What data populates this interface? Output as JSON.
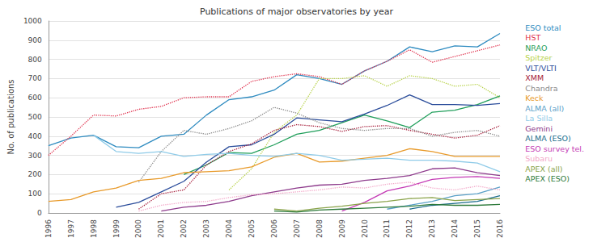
{
  "chart_data": {
    "type": "line",
    "title": "Publications of major observatories by year",
    "y_label": "No. of publications",
    "categories": [
      "1996",
      "1997",
      "1998",
      "1999",
      "2000",
      "2001",
      "2002",
      "2003",
      "2004",
      "2005",
      "2006",
      "2007",
      "2008",
      "2009",
      "2010",
      "2011",
      "2012",
      "2013",
      "2014",
      "2015",
      "2016"
    ],
    "ylim": [
      0,
      1000
    ],
    "yticks": [
      0,
      100,
      200,
      300,
      400,
      500,
      600,
      700,
      800,
      900,
      1000
    ],
    "grid": true,
    "legend": "right",
    "series": [
      {
        "name": "ESO total",
        "color": "#2e8bc0",
        "line_style": "solid",
        "values": [
          350,
          390,
          405,
          345,
          340,
          400,
          410,
          510,
          590,
          605,
          640,
          720,
          700,
          670,
          740,
          790,
          865,
          840,
          870,
          865,
          935
        ]
      },
      {
        "name": "HST",
        "color": "#e0334f",
        "line_style": "dotted",
        "values": [
          300,
          400,
          510,
          505,
          540,
          555,
          600,
          605,
          605,
          685,
          710,
          725,
          710,
          670,
          740,
          790,
          850,
          785,
          815,
          845,
          875
        ]
      },
      {
        "name": "NRAO",
        "color": "#1f9e5a",
        "line_style": "solid",
        "values": [
          null,
          null,
          null,
          null,
          null,
          null,
          200,
          250,
          315,
          310,
          355,
          410,
          430,
          470,
          510,
          480,
          445,
          525,
          535,
          565,
          610
        ]
      },
      {
        "name": "Spitzer",
        "color": "#b8d24a",
        "line_style": "dotted",
        "values": [
          null,
          null,
          null,
          null,
          null,
          null,
          null,
          null,
          120,
          230,
          420,
          510,
          700,
          700,
          715,
          660,
          715,
          700,
          660,
          670,
          600
        ]
      },
      {
        "name": "VLT/VLTI",
        "color": "#2b4d9b",
        "line_style": "solid",
        "values": [
          null,
          null,
          null,
          30,
          55,
          110,
          165,
          265,
          345,
          355,
          410,
          495,
          485,
          475,
          515,
          560,
          615,
          565,
          565,
          560,
          570
        ]
      },
      {
        "name": "XMM",
        "color": "#a61d3a",
        "line_style": "dotted",
        "values": [
          null,
          null,
          null,
          null,
          20,
          100,
          120,
          250,
          320,
          360,
          430,
          460,
          450,
          425,
          450,
          455,
          430,
          410,
          390,
          405,
          455
        ]
      },
      {
        "name": "Chandra",
        "color": "#8a8a8a",
        "line_style": "dotted",
        "values": [
          null,
          null,
          null,
          null,
          160,
          320,
          430,
          410,
          440,
          480,
          550,
          520,
          470,
          440,
          430,
          440,
          440,
          400,
          420,
          430,
          400
        ]
      },
      {
        "name": "Keck",
        "color": "#e89a2a",
        "line_style": "solid",
        "values": [
          60,
          70,
          110,
          130,
          170,
          180,
          210,
          215,
          220,
          240,
          290,
          310,
          265,
          270,
          285,
          300,
          335,
          320,
          295,
          295,
          295
        ]
      },
      {
        "name": "ALMA (all)",
        "color": "#5aa0c8",
        "line_style": "solid",
        "values": [
          null,
          null,
          null,
          null,
          null,
          null,
          null,
          null,
          null,
          null,
          null,
          null,
          null,
          null,
          null,
          20,
          40,
          60,
          90,
          100,
          135
        ]
      },
      {
        "name": "La Silla",
        "color": "#8fcbe8",
        "line_style": "solid",
        "values": [
          null,
          null,
          405,
          320,
          310,
          320,
          295,
          305,
          310,
          300,
          295,
          310,
          300,
          275,
          280,
          285,
          275,
          275,
          270,
          260,
          215
        ]
      },
      {
        "name": "Gemini",
        "color": "#8e3b8c",
        "line_style": "solid",
        "values": [
          null,
          null,
          null,
          null,
          null,
          10,
          30,
          40,
          60,
          90,
          110,
          130,
          145,
          150,
          170,
          180,
          195,
          230,
          235,
          210,
          195
        ]
      },
      {
        "name": "ALMA (ESO)",
        "color": "#1a6b8a",
        "line_style": "solid",
        "values": [
          null,
          null,
          null,
          null,
          null,
          null,
          null,
          null,
          null,
          null,
          null,
          null,
          null,
          null,
          null,
          null,
          20,
          40,
          50,
          60,
          90
        ]
      },
      {
        "name": "ESO survey tel.",
        "color": "#c43ab5",
        "line_style": "solid",
        "values": [
          null,
          null,
          null,
          null,
          null,
          null,
          null,
          null,
          null,
          null,
          null,
          null,
          null,
          10,
          55,
          115,
          140,
          175,
          185,
          190,
          180
        ]
      },
      {
        "name": "Subaru",
        "color": "#f2a7c8",
        "line_style": "dotted",
        "values": [
          null,
          null,
          null,
          null,
          10,
          40,
          55,
          60,
          80,
          95,
          100,
          110,
          120,
          135,
          130,
          150,
          160,
          130,
          120,
          140,
          120
        ]
      },
      {
        "name": "APEX (all)",
        "color": "#8aa34a",
        "line_style": "solid",
        "values": [
          null,
          null,
          null,
          null,
          null,
          null,
          null,
          null,
          null,
          null,
          20,
          10,
          25,
          35,
          50,
          60,
          75,
          80,
          65,
          70,
          75
        ]
      },
      {
        "name": "APEX (ESO)",
        "color": "#2d7a3a",
        "line_style": "solid",
        "values": [
          null,
          null,
          null,
          null,
          null,
          null,
          null,
          null,
          null,
          null,
          10,
          5,
          15,
          20,
          25,
          30,
          35,
          45,
          40,
          40,
          45
        ]
      }
    ]
  }
}
